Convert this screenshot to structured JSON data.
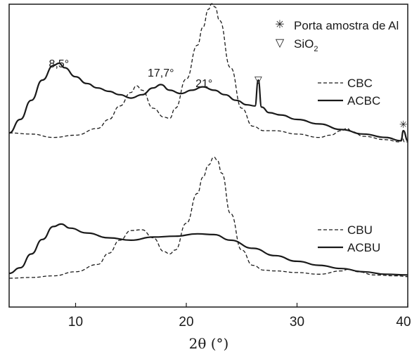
{
  "chart_data": {
    "type": "line",
    "xlabel": "2θ (°)",
    "xlim": [
      4,
      40
    ],
    "xticks": [
      "10",
      "20",
      "30",
      "40"
    ],
    "xtick_values": [
      10,
      20,
      30,
      40
    ],
    "ylabel": "",
    "grid": false,
    "panels": [
      {
        "name": "top",
        "legend_position": "right",
        "series": [
          {
            "name": "CBC",
            "style": "dashed",
            "x": [
              4,
              6,
              8,
              10,
              12,
              13,
              14,
              15,
              15.5,
              16,
              17,
              18,
              18.5,
              19,
              20,
              21,
              21.5,
              22,
              22.3,
              22.6,
              23,
              24,
              25,
              26,
              27,
              28,
              30,
              32,
              33,
              34,
              34.5,
              35,
              36,
              38,
              39.3,
              39.5,
              39.7,
              40
            ],
            "y": [
              0.08,
              0.07,
              0.04,
              0.06,
              0.12,
              0.2,
              0.32,
              0.44,
              0.5,
              0.46,
              0.3,
              0.22,
              0.21,
              0.3,
              0.56,
              0.86,
              1.02,
              1.18,
              1.23,
              1.2,
              1.08,
              0.66,
              0.3,
              0.14,
              0.1,
              0.1,
              0.07,
              0.04,
              0.06,
              0.1,
              0.12,
              0.09,
              0.05,
              0.02,
              0.0,
              0.04,
              0.0,
              0.0
            ],
            "color": "#1a1a1a"
          },
          {
            "name": "ACBC",
            "style": "solid",
            "x": [
              4,
              5,
              6,
              7,
              8,
              8.5,
              9,
              10,
              11,
              12,
              13,
              14,
              15,
              16,
              17,
              17.7,
              18.5,
              19.5,
              20.5,
              21.5,
              22.5,
              23.5,
              24.5,
              25.5,
              26.2,
              26.5,
              26.8,
              27.5,
              28.5,
              30,
              32,
              34,
              36,
              38,
              39.4,
              39.6,
              40
            ],
            "y": [
              0.08,
              0.2,
              0.37,
              0.55,
              0.68,
              0.7,
              0.66,
              0.58,
              0.52,
              0.48,
              0.45,
              0.42,
              0.39,
              0.42,
              0.48,
              0.51,
              0.46,
              0.43,
              0.46,
              0.49,
              0.46,
              0.42,
              0.37,
              0.33,
              0.32,
              0.55,
              0.31,
              0.26,
              0.24,
              0.2,
              0.16,
              0.11,
              0.07,
              0.04,
              0.01,
              0.1,
              0.01
            ],
            "color": "#1a1a1a"
          }
        ],
        "annotations": {
          "peak_8_5": {
            "text": "8,5°",
            "x": 8.5
          },
          "peak_17_7": {
            "text": "17,7°",
            "x": 17.7
          },
          "peak_21": {
            "text": "21°",
            "x": 21.6
          },
          "sio2_marker": {
            "symbol": "▽",
            "x": 26.5
          },
          "al_marker": {
            "symbol": "✳",
            "x": 39.6
          }
        }
      },
      {
        "name": "bottom",
        "legend_position": "right",
        "series": [
          {
            "name": "CBU",
            "style": "dashed",
            "x": [
              4,
              6,
              8,
              10,
              12,
              13,
              14,
              15,
              16,
              17,
              18,
              18.5,
              19,
              20,
              21,
              21.5,
              22,
              22.5,
              22.8,
              23.2,
              24,
              25,
              26,
              27,
              28,
              30,
              32,
              34,
              34.6,
              35.5,
              37,
              39,
              40
            ],
            "y": [
              0.0,
              0.01,
              0.03,
              0.08,
              0.17,
              0.31,
              0.47,
              0.59,
              0.6,
              0.5,
              0.33,
              0.3,
              0.35,
              0.68,
              1.05,
              1.25,
              1.4,
              1.5,
              1.46,
              1.3,
              0.8,
              0.35,
              0.16,
              0.1,
              0.09,
              0.07,
              0.05,
              0.09,
              0.11,
              0.08,
              0.04,
              0.03,
              0.02
            ],
            "color": "#1a1a1a"
          },
          {
            "name": "ACBU",
            "style": "solid",
            "x": [
              4,
              5,
              6,
              7,
              8,
              8.7,
              9.5,
              11,
              13,
              15,
              17,
              19,
              21,
              22.5,
              24,
              26,
              28,
              30,
              32,
              34,
              36,
              38,
              40
            ],
            "y": [
              0.06,
              0.13,
              0.3,
              0.48,
              0.64,
              0.67,
              0.62,
              0.56,
              0.5,
              0.47,
              0.51,
              0.52,
              0.55,
              0.54,
              0.47,
              0.37,
              0.28,
              0.21,
              0.16,
              0.12,
              0.08,
              0.05,
              0.04
            ],
            "color": "#1a1a1a"
          }
        ]
      }
    ],
    "top_legend": [
      {
        "symbol": "✳",
        "label": "Porta amostra de Al"
      },
      {
        "symbol": "▽",
        "label": "SiO",
        "subscript": "2"
      }
    ]
  }
}
